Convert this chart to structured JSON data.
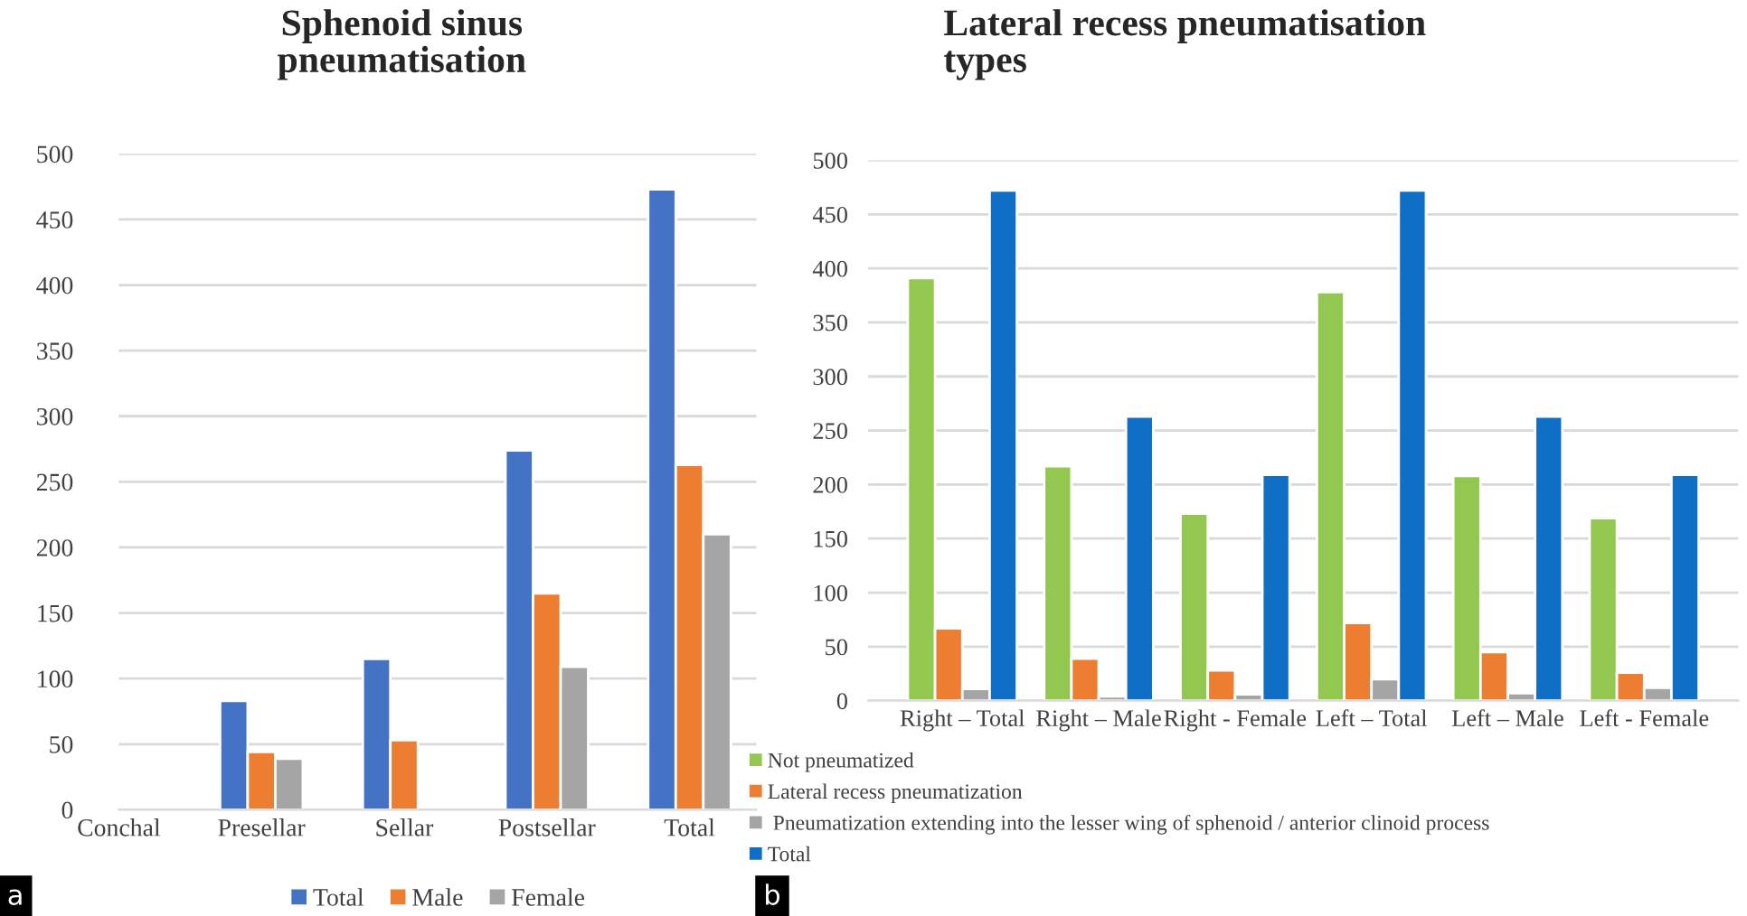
{
  "chart_data": [
    {
      "type": "bar",
      "title": "Sphenoid sinus pneumatisation",
      "categories": [
        "Conchal",
        "Presellar",
        "Sellar",
        "Postsellar",
        "Total"
      ],
      "series": [
        {
          "name": "Total",
          "color": "#4472c4",
          "values": [
            null,
            83,
            115,
            274,
            473
          ]
        },
        {
          "name": "Male",
          "color": "#ed7d31",
          "values": [
            null,
            44,
            53,
            165,
            263
          ]
        },
        {
          "name": "Female",
          "color": "#a5a5a5",
          "values": [
            null,
            39,
            null,
            109,
            210
          ]
        }
      ],
      "ylim": [
        0,
        500
      ],
      "yticks": [
        0,
        50,
        100,
        150,
        200,
        250,
        300,
        350,
        400,
        450,
        500
      ],
      "grid": "y",
      "legend": "bottom",
      "annotations": [
        "a"
      ]
    },
    {
      "type": "bar",
      "title": "Lateral recess pneumatisation types",
      "categories": [
        "Right – Total",
        "Right – Male",
        "Right - Female",
        "Left – Total",
        "Left – Male",
        "Left - Female"
      ],
      "series": [
        {
          "name": "Not pneumatized",
          "color": "#92c84f",
          "values": [
            391,
            217,
            173,
            378,
            208,
            169
          ]
        },
        {
          "name": "Lateral recess pneumatization",
          "color": "#ed7d31",
          "values": [
            67,
            39,
            28,
            72,
            45,
            26
          ]
        },
        {
          "name": " Pneumatization extending into the lesser wing of sphenoid / anterior clinoid process",
          "color": "#a5a5a5",
          "values": [
            11,
            4,
            6,
            20,
            7,
            12
          ]
        },
        {
          "name": "Total",
          "color": "#0f6fc6",
          "values": [
            472,
            263,
            209,
            472,
            263,
            209
          ]
        }
      ],
      "ylim": [
        0,
        500
      ],
      "yticks": [
        0,
        50,
        100,
        150,
        200,
        250,
        300,
        350,
        400,
        450,
        500
      ],
      "grid": "y",
      "legend": "bottom left",
      "annotations": [
        "b"
      ]
    }
  ]
}
